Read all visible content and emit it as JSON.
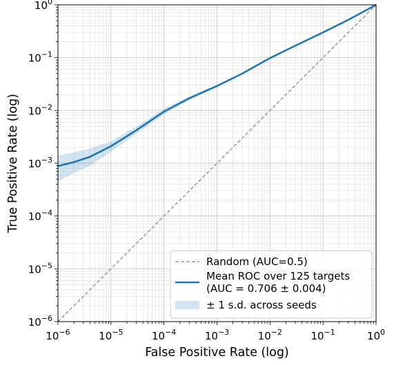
{
  "chart_data": {
    "type": "line",
    "title": "",
    "xlabel": "False Positive Rate (log)",
    "ylabel": "True Positive Rate (log)",
    "xscale": "log",
    "yscale": "log",
    "xlim": [
      1e-06,
      1
    ],
    "ylim": [
      1e-06,
      1
    ],
    "grid": true,
    "legend_position": "lower-right",
    "x_ticks": [
      {
        "base": "10",
        "exp": "−6"
      },
      {
        "base": "10",
        "exp": "−5"
      },
      {
        "base": "10",
        "exp": "−4"
      },
      {
        "base": "10",
        "exp": "−3"
      },
      {
        "base": "10",
        "exp": "−2"
      },
      {
        "base": "10",
        "exp": "−1"
      },
      {
        "base": "10",
        "exp": "0"
      }
    ],
    "y_ticks": [
      {
        "base": "10",
        "exp": "−6"
      },
      {
        "base": "10",
        "exp": "−5"
      },
      {
        "base": "10",
        "exp": "−4"
      },
      {
        "base": "10",
        "exp": "−3"
      },
      {
        "base": "10",
        "exp": "−2"
      },
      {
        "base": "10",
        "exp": "−1"
      },
      {
        "base": "10",
        "exp": "0"
      }
    ],
    "series": [
      {
        "name": "Random (AUC=0.5)",
        "style": "dashed",
        "color": "#999999",
        "x": [
          1e-06,
          1
        ],
        "y": [
          1e-06,
          1
        ]
      },
      {
        "name": "Mean ROC over 125 targets",
        "name_line2": "(AUC = 0.706 ± 0.004)",
        "style": "solid",
        "color": "#1f77b4",
        "x": [
          1e-06,
          2e-06,
          4e-06,
          1e-05,
          3e-05,
          0.0001,
          0.0003,
          0.001,
          0.003,
          0.01,
          0.03,
          0.1,
          0.3,
          1
        ],
        "y": [
          0.00088,
          0.00105,
          0.00132,
          0.0021,
          0.0042,
          0.0095,
          0.017,
          0.029,
          0.05,
          0.098,
          0.168,
          0.3,
          0.52,
          1
        ]
      }
    ],
    "band": {
      "name": "± 1 s.d. across seeds",
      "color": "#1f77b4",
      "opacity": 0.2,
      "x": [
        1e-06,
        2e-06,
        4e-06,
        1e-05,
        3e-05,
        0.0001,
        0.0003,
        0.001,
        0.003,
        0.01,
        0.03,
        0.1,
        0.3,
        1
      ],
      "lower": [
        0.00045,
        0.00065,
        0.0009,
        0.00165,
        0.0036,
        0.0085,
        0.0158,
        0.0275,
        0.048,
        0.0955,
        0.165,
        0.296,
        0.515,
        1
      ],
      "upper": [
        0.0014,
        0.0016,
        0.0019,
        0.0026,
        0.0049,
        0.0108,
        0.0184,
        0.0307,
        0.052,
        0.1005,
        0.171,
        0.304,
        0.525,
        1
      ]
    }
  }
}
